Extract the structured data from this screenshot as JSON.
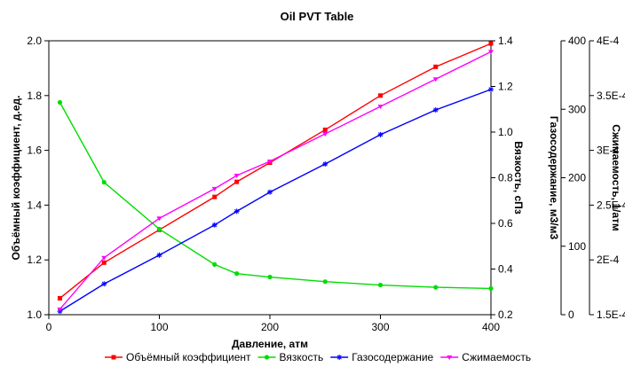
{
  "chart_data": {
    "type": "line",
    "title": "Oil PVT Table",
    "xlabel": "Давление, атм",
    "xlim": [
      0,
      400
    ],
    "x_ticks": [
      "0",
      "100",
      "200",
      "300",
      "400"
    ],
    "grid": false,
    "legend_position": "bottom",
    "axes": [
      {
        "id": "bo",
        "label": "Объёмный коэффициент, д.ед.",
        "side": "left",
        "ylim": [
          1.0,
          2.0
        ],
        "ticks": [
          1.0,
          1.2,
          1.4,
          1.6,
          1.8,
          2.0
        ],
        "tick_labels": [
          "1.0",
          "1.2",
          "1.4",
          "1.6",
          "1.8",
          "2.0"
        ]
      },
      {
        "id": "mu",
        "label": "Вязкость, сПз",
        "side": "right",
        "ylim": [
          0.2,
          1.4
        ],
        "ticks": [
          0.2,
          0.4,
          0.6,
          0.8,
          1.0,
          1.2,
          1.4
        ],
        "tick_labels": [
          "0.2",
          "0.4",
          "0.6",
          "0.8",
          "1.0",
          "1.2",
          "1.4"
        ]
      },
      {
        "id": "rs",
        "label": "Газосодержание, м3/м3",
        "side": "right",
        "ylim": [
          0,
          400
        ],
        "ticks": [
          0,
          100,
          200,
          300,
          400
        ],
        "tick_labels": [
          "0",
          "100",
          "200",
          "300",
          "400"
        ]
      },
      {
        "id": "ct",
        "label": "Сжимаемость, 1/атм",
        "side": "right",
        "ylim": [
          0.00015,
          0.0004
        ],
        "ticks": [
          0.00015,
          0.0002,
          0.00025,
          0.0003,
          0.00035,
          0.0004
        ],
        "tick_labels": [
          "1.5E-4",
          "2E-4",
          "2.5E-4",
          "3E-4",
          "3.5E-4",
          "4E-4"
        ]
      }
    ],
    "series": [
      {
        "name": "Объёмный коэффициент",
        "axis": "bo",
        "color": "#ff0000",
        "marker": "square",
        "x": [
          10,
          50,
          100,
          150,
          170,
          200,
          250,
          300,
          350,
          400
        ],
        "y": [
          1.06,
          1.19,
          1.31,
          1.43,
          1.485,
          1.555,
          1.675,
          1.8,
          1.905,
          1.99
        ]
      },
      {
        "name": "Вязкость",
        "axis": "mu",
        "color": "#00dd00",
        "marker": "circle",
        "x": [
          10,
          50,
          100,
          150,
          170,
          200,
          250,
          300,
          350,
          400
        ],
        "y": [
          1.13,
          0.78,
          0.575,
          0.42,
          0.38,
          0.365,
          0.345,
          0.33,
          0.32,
          0.315
        ]
      },
      {
        "name": "Газосодержание",
        "axis": "rs",
        "color": "#0000ff",
        "marker": "star",
        "x": [
          10,
          50,
          100,
          150,
          170,
          200,
          250,
          300,
          350,
          400
        ],
        "y": [
          5,
          45,
          87,
          131,
          151,
          179,
          220,
          263,
          299,
          329
        ]
      },
      {
        "name": "Сжимаемость",
        "axis": "ct",
        "color": "#ff00ff",
        "marker": "triangle",
        "x": [
          10,
          50,
          100,
          150,
          170,
          200,
          250,
          300,
          350,
          400
        ],
        "y": [
          0.000155,
          0.000202,
          0.000238,
          0.000265,
          0.000277,
          0.00029,
          0.000315,
          0.00034,
          0.000365,
          0.00039
        ]
      }
    ]
  }
}
